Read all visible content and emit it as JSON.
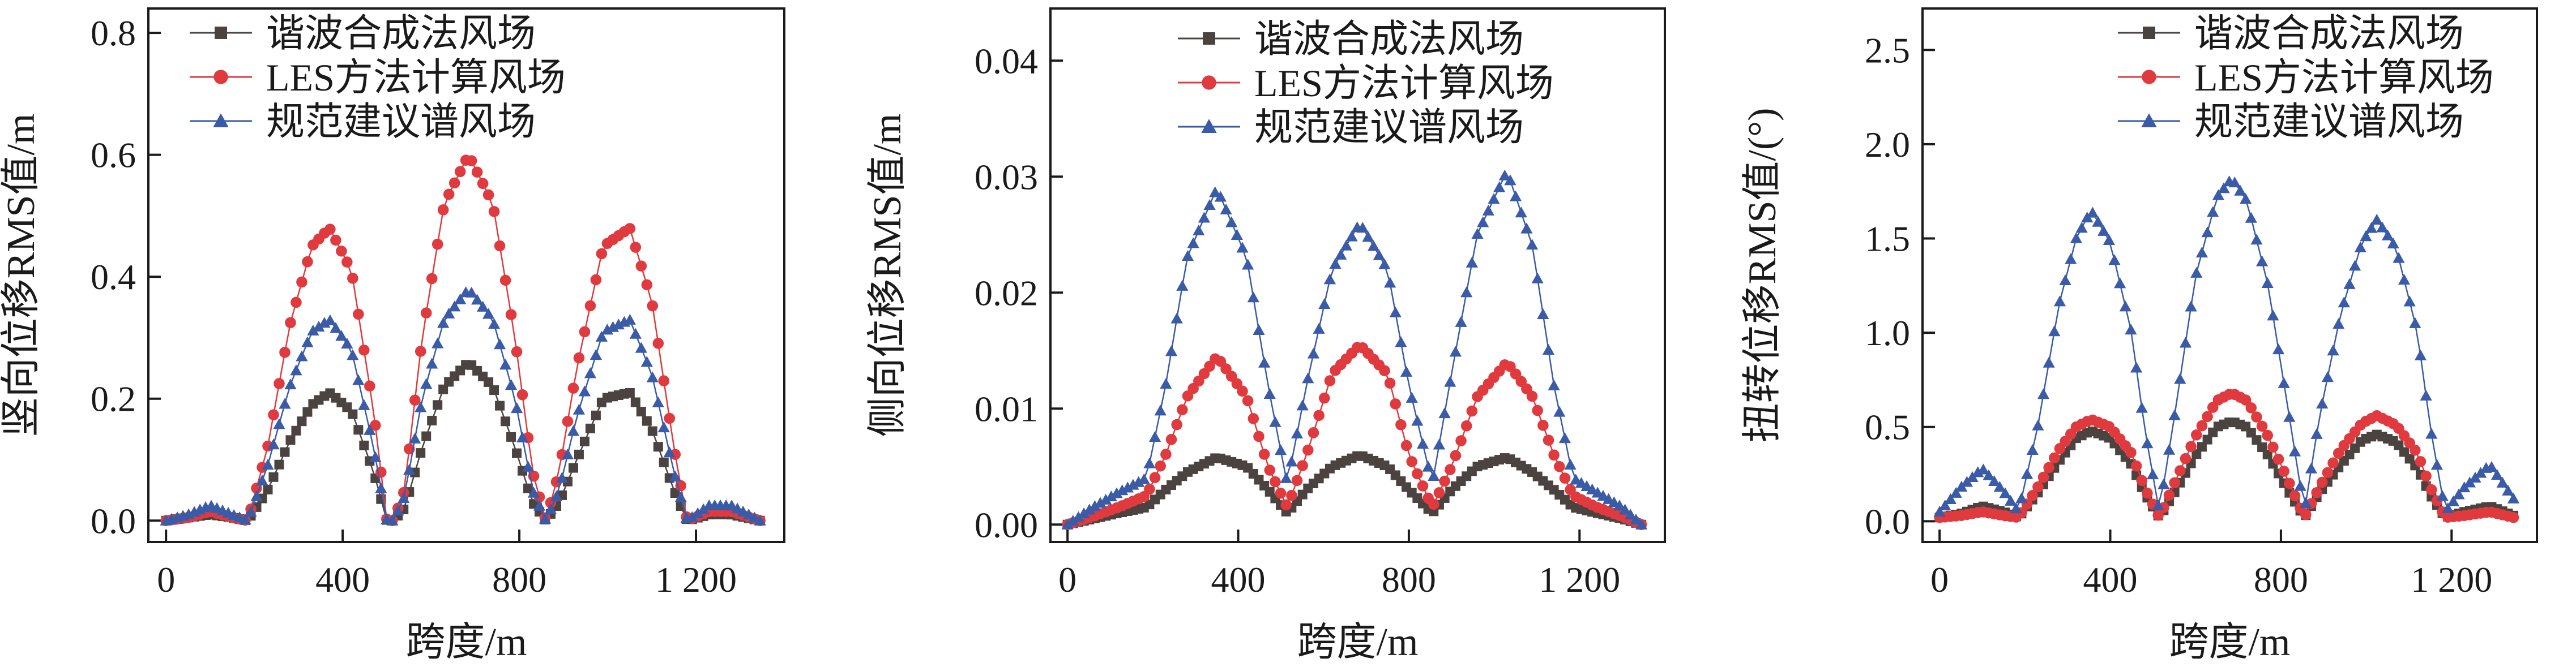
{
  "colors": {
    "harmonic": "#4a4340",
    "les": "#e03a3e",
    "spec": "#3a5ba8",
    "axis": "#1a1a1a"
  },
  "legend": [
    "谐波合成法风场",
    "LES方法计算风场",
    "规范建议谱风场"
  ],
  "chart_data": [
    {
      "type": "line",
      "xlabel": "跨度/m",
      "ylabel": "竖向位移RMS值/m",
      "xlim": [
        -40,
        1400
      ],
      "ylim": [
        -0.035,
        0.84
      ],
      "xticks": [
        0,
        400,
        800,
        1200
      ],
      "xtick_labels": [
        "0",
        "400",
        "800",
        "1 200"
      ],
      "yticks": [
        0.0,
        0.2,
        0.4,
        0.6,
        0.8
      ],
      "ytick_labels": [
        "0.0",
        "0.2",
        "0.4",
        "0.6",
        "0.8"
      ],
      "legend_position": "top",
      "series": [
        {
          "name": "谐波合成法风场",
          "marker": "square",
          "color_key": "harmonic",
          "x": [
            0,
            50,
            100,
            150,
            185,
            230,
            280,
            330,
            370,
            420,
            470,
            500,
            515,
            540,
            580,
            630,
            685,
            740,
            790,
            830,
            860,
            890,
            930,
            990,
            1050,
            1100,
            1150,
            1180,
            1230,
            1280,
            1345
          ],
          "y": [
            0.0,
            0.005,
            0.01,
            0.005,
            0.0,
            0.05,
            0.13,
            0.19,
            0.21,
            0.18,
            0.08,
            0.0,
            0.0,
            0.02,
            0.12,
            0.22,
            0.26,
            0.22,
            0.12,
            0.03,
            0.0,
            0.03,
            0.1,
            0.2,
            0.21,
            0.15,
            0.05,
            0.0,
            0.01,
            0.01,
            0.0
          ]
        },
        {
          "name": "LES方法计算风场",
          "marker": "circle",
          "color_key": "les",
          "x": [
            0,
            50,
            100,
            150,
            185,
            230,
            280,
            330,
            370,
            420,
            470,
            500,
            515,
            540,
            580,
            630,
            685,
            740,
            790,
            830,
            860,
            890,
            930,
            990,
            1050,
            1100,
            1150,
            1180,
            1230,
            1280,
            1345
          ],
          "y": [
            0.0,
            0.005,
            0.015,
            0.005,
            0.0,
            0.12,
            0.32,
            0.45,
            0.48,
            0.41,
            0.18,
            0.0,
            0.0,
            0.05,
            0.3,
            0.52,
            0.6,
            0.52,
            0.3,
            0.08,
            0.0,
            0.08,
            0.25,
            0.45,
            0.48,
            0.36,
            0.12,
            0.0,
            0.015,
            0.015,
            0.0
          ]
        },
        {
          "name": "规范建议谱风场",
          "marker": "triangle",
          "color_key": "spec",
          "x": [
            0,
            50,
            100,
            150,
            185,
            230,
            280,
            330,
            370,
            420,
            470,
            500,
            515,
            540,
            580,
            630,
            685,
            740,
            790,
            830,
            860,
            890,
            930,
            990,
            1050,
            1100,
            1150,
            1180,
            1230,
            1280,
            1345
          ],
          "y": [
            0.0,
            0.01,
            0.025,
            0.01,
            0.0,
            0.09,
            0.22,
            0.31,
            0.33,
            0.28,
            0.12,
            0.0,
            0.0,
            0.04,
            0.2,
            0.33,
            0.38,
            0.33,
            0.2,
            0.05,
            0.0,
            0.05,
            0.17,
            0.31,
            0.33,
            0.24,
            0.08,
            0.0,
            0.025,
            0.025,
            0.0
          ]
        }
      ]
    },
    {
      "type": "line",
      "xlabel": "跨度/m",
      "ylabel": "侧向位移RMS值/m",
      "xlim": [
        -40,
        1400
      ],
      "ylim": [
        -0.0015,
        0.0445
      ],
      "xticks": [
        0,
        400,
        800,
        1200
      ],
      "xtick_labels": [
        "0",
        "400",
        "800",
        "1 200"
      ],
      "yticks": [
        0.0,
        0.01,
        0.02,
        0.03,
        0.04
      ],
      "ytick_labels": [
        "0.00",
        "0.01",
        "0.02",
        "0.03",
        "0.04"
      ],
      "legend_position": "top",
      "series": [
        {
          "name": "谐波合成法风场",
          "marker": "square",
          "color_key": "harmonic",
          "x": [
            0,
            60,
            120,
            185,
            230,
            280,
            350,
            420,
            470,
            515,
            560,
            620,
            685,
            750,
            800,
            855,
            900,
            960,
            1030,
            1090,
            1140,
            1185,
            1240,
            1300,
            1345
          ],
          "y": [
            0.0,
            0.0005,
            0.001,
            0.0015,
            0.003,
            0.0045,
            0.0058,
            0.005,
            0.003,
            0.001,
            0.003,
            0.005,
            0.006,
            0.005,
            0.003,
            0.001,
            0.003,
            0.005,
            0.0058,
            0.0045,
            0.003,
            0.0015,
            0.001,
            0.0005,
            0.0
          ]
        },
        {
          "name": "LES方法计算风场",
          "marker": "circle",
          "color_key": "les",
          "x": [
            0,
            60,
            120,
            185,
            230,
            280,
            350,
            420,
            470,
            515,
            560,
            620,
            685,
            750,
            800,
            855,
            900,
            960,
            1030,
            1090,
            1140,
            1185,
            1240,
            1300,
            1345
          ],
          "y": [
            0.0,
            0.0007,
            0.0015,
            0.0025,
            0.006,
            0.011,
            0.0145,
            0.011,
            0.005,
            0.0015,
            0.006,
            0.013,
            0.0155,
            0.013,
            0.006,
            0.0015,
            0.005,
            0.011,
            0.014,
            0.011,
            0.006,
            0.0025,
            0.0015,
            0.0007,
            0.0
          ]
        },
        {
          "name": "规范建议谱风场",
          "marker": "triangle",
          "color_key": "spec",
          "x": [
            0,
            60,
            120,
            185,
            230,
            280,
            350,
            420,
            470,
            515,
            560,
            620,
            685,
            750,
            800,
            855,
            900,
            960,
            1030,
            1090,
            1140,
            1185,
            1240,
            1300,
            1345
          ],
          "y": [
            0.0,
            0.0015,
            0.0028,
            0.004,
            0.012,
            0.023,
            0.029,
            0.023,
            0.012,
            0.0035,
            0.012,
            0.022,
            0.026,
            0.022,
            0.012,
            0.0035,
            0.013,
            0.025,
            0.0305,
            0.024,
            0.012,
            0.004,
            0.0028,
            0.0015,
            0.0
          ]
        }
      ]
    },
    {
      "type": "line",
      "xlabel": "跨度/m",
      "ylabel": "扭转位移RMS值/(°)",
      "xlim": [
        -40,
        1400
      ],
      "ylim": [
        -0.11,
        2.72
      ],
      "xticks": [
        0,
        400,
        800,
        1200
      ],
      "xtick_labels": [
        "0",
        "400",
        "800",
        "1 200"
      ],
      "yticks": [
        0.0,
        0.5,
        1.0,
        1.5,
        2.0,
        2.5
      ],
      "ytick_labels": [
        "0.0",
        "0.5",
        "1.0",
        "1.5",
        "2.0",
        "2.5"
      ],
      "legend_position": "top-right",
      "series": [
        {
          "name": "谐波合成法风场",
          "marker": "square",
          "color_key": "harmonic",
          "x": [
            0,
            50,
            100,
            150,
            185,
            230,
            280,
            320,
            355,
            400,
            450,
            480,
            515,
            550,
            600,
            650,
            685,
            720,
            770,
            820,
            855,
            890,
            940,
            990,
            1025,
            1070,
            1120,
            1150,
            1185,
            1230,
            1290,
            1345
          ],
          "y": [
            0.02,
            0.04,
            0.08,
            0.05,
            0.02,
            0.15,
            0.32,
            0.44,
            0.48,
            0.44,
            0.3,
            0.15,
            0.02,
            0.15,
            0.35,
            0.5,
            0.53,
            0.5,
            0.35,
            0.15,
            0.02,
            0.15,
            0.3,
            0.43,
            0.46,
            0.42,
            0.28,
            0.14,
            0.02,
            0.05,
            0.08,
            0.03
          ]
        },
        {
          "name": "LES方法计算风场",
          "marker": "circle",
          "color_key": "les",
          "x": [
            0,
            50,
            100,
            150,
            185,
            230,
            280,
            320,
            355,
            400,
            450,
            480,
            515,
            550,
            600,
            650,
            685,
            720,
            770,
            820,
            855,
            890,
            940,
            990,
            1025,
            1070,
            1120,
            1150,
            1185,
            1230,
            1290,
            1345
          ],
          "y": [
            0.02,
            0.03,
            0.05,
            0.03,
            0.02,
            0.18,
            0.38,
            0.5,
            0.54,
            0.5,
            0.36,
            0.18,
            0.02,
            0.2,
            0.45,
            0.64,
            0.68,
            0.64,
            0.45,
            0.2,
            0.02,
            0.18,
            0.38,
            0.52,
            0.56,
            0.51,
            0.36,
            0.18,
            0.02,
            0.03,
            0.05,
            0.02
          ]
        },
        {
          "name": "规范建议谱风场",
          "marker": "triangle",
          "color_key": "spec",
          "x": [
            0,
            50,
            100,
            150,
            185,
            230,
            280,
            320,
            355,
            400,
            450,
            480,
            515,
            550,
            600,
            650,
            685,
            720,
            770,
            820,
            855,
            890,
            940,
            990,
            1025,
            1070,
            1120,
            1150,
            1185,
            1230,
            1290,
            1345
          ],
          "y": [
            0.05,
            0.18,
            0.28,
            0.16,
            0.05,
            0.5,
            1.15,
            1.5,
            1.65,
            1.48,
            1.0,
            0.5,
            0.05,
            0.55,
            1.3,
            1.72,
            1.82,
            1.7,
            1.25,
            0.55,
            0.05,
            0.55,
            1.1,
            1.48,
            1.6,
            1.45,
            1.0,
            0.5,
            0.05,
            0.18,
            0.3,
            0.12
          ]
        }
      ]
    }
  ]
}
